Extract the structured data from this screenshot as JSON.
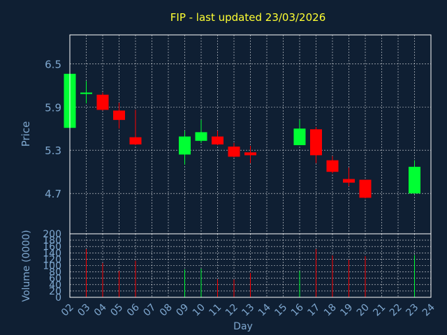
{
  "colors": {
    "background": "#0f1f33",
    "title": "#ffff33",
    "axis_text": "#7fa8d0",
    "grid": "#ffffff",
    "up": "#00ff33",
    "down": "#ff0000"
  },
  "chart_data": [
    {
      "type": "candlestick",
      "title": "FIP - last updated 23/03/2026",
      "ylabel": "Price",
      "ylim": [
        4.14,
        6.9
      ],
      "yticks": [
        "4.7",
        "5.3",
        "5.9",
        "6.5"
      ],
      "x_categories": [
        "02",
        "03",
        "04",
        "05",
        "06",
        "07",
        "08",
        "09",
        "10",
        "11",
        "12",
        "13",
        "14",
        "15",
        "16",
        "17",
        "18",
        "19",
        "20",
        "21",
        "22",
        "23",
        "24"
      ],
      "grid": true,
      "candles": [
        {
          "day": "02",
          "open": 5.61,
          "close": 6.36,
          "high": 6.36,
          "low": 5.61
        },
        {
          "day": "03",
          "open": 6.08,
          "close": 6.1,
          "high": 6.26,
          "low": 5.95
        },
        {
          "day": "04",
          "open": 6.07,
          "close": 5.86,
          "high": 6.1,
          "low": 5.85
        },
        {
          "day": "05",
          "open": 5.85,
          "close": 5.72,
          "high": 5.96,
          "low": 5.6
        },
        {
          "day": "06",
          "open": 5.48,
          "close": 5.38,
          "high": 5.86,
          "low": 5.37
        },
        {
          "day": "09",
          "open": 5.24,
          "close": 5.49,
          "high": 5.57,
          "low": 5.1
        },
        {
          "day": "10",
          "open": 5.43,
          "close": 5.55,
          "high": 5.72,
          "low": 5.4
        },
        {
          "day": "11",
          "open": 5.49,
          "close": 5.38,
          "high": 5.57,
          "low": 5.37
        },
        {
          "day": "12",
          "open": 5.35,
          "close": 5.21,
          "high": 5.4,
          "low": 5.2
        },
        {
          "day": "13",
          "open": 5.27,
          "close": 5.23,
          "high": 5.36,
          "low": 5.12
        },
        {
          "day": "16",
          "open": 5.37,
          "close": 5.6,
          "high": 5.72,
          "low": 5.37
        },
        {
          "day": "17",
          "open": 5.59,
          "close": 5.23,
          "high": 5.62,
          "low": 5.12
        },
        {
          "day": "18",
          "open": 5.16,
          "close": 5.0,
          "high": 5.22,
          "low": 4.98
        },
        {
          "day": "19",
          "open": 4.9,
          "close": 4.85,
          "high": 5.06,
          "low": 4.8
        },
        {
          "day": "20",
          "open": 4.89,
          "close": 4.64,
          "high": 4.89,
          "low": 4.63
        },
        {
          "day": "23",
          "open": 4.7,
          "close": 5.07,
          "high": 5.16,
          "low": 4.7
        }
      ]
    },
    {
      "type": "bar",
      "ylabel": "Volume (0000)",
      "xlabel": "Day",
      "ylim": [
        0,
        200
      ],
      "yticks": [
        "0",
        "20",
        "40",
        "60",
        "80",
        "100",
        "120",
        "140",
        "160",
        "180",
        "200"
      ],
      "x_categories": [
        "02",
        "03",
        "04",
        "05",
        "06",
        "07",
        "08",
        "09",
        "10",
        "11",
        "12",
        "13",
        "14",
        "15",
        "16",
        "17",
        "18",
        "19",
        "20",
        "21",
        "22",
        "23",
        "24"
      ],
      "bars": [
        {
          "day": "03",
          "value": 152,
          "direction": "down"
        },
        {
          "day": "04",
          "value": 108,
          "direction": "down"
        },
        {
          "day": "05",
          "value": 83,
          "direction": "down"
        },
        {
          "day": "06",
          "value": 115,
          "direction": "down"
        },
        {
          "day": "09",
          "value": 88,
          "direction": "up"
        },
        {
          "day": "10",
          "value": 90,
          "direction": "up"
        },
        {
          "day": "11",
          "value": 57,
          "direction": "down"
        },
        {
          "day": "12",
          "value": 56,
          "direction": "down"
        },
        {
          "day": "13",
          "value": 77,
          "direction": "down"
        },
        {
          "day": "16",
          "value": 83,
          "direction": "up"
        },
        {
          "day": "17",
          "value": 152,
          "direction": "down"
        },
        {
          "day": "18",
          "value": 132,
          "direction": "down"
        },
        {
          "day": "19",
          "value": 118,
          "direction": "down"
        },
        {
          "day": "20",
          "value": 130,
          "direction": "down"
        },
        {
          "day": "23",
          "value": 133,
          "direction": "up"
        }
      ]
    }
  ]
}
